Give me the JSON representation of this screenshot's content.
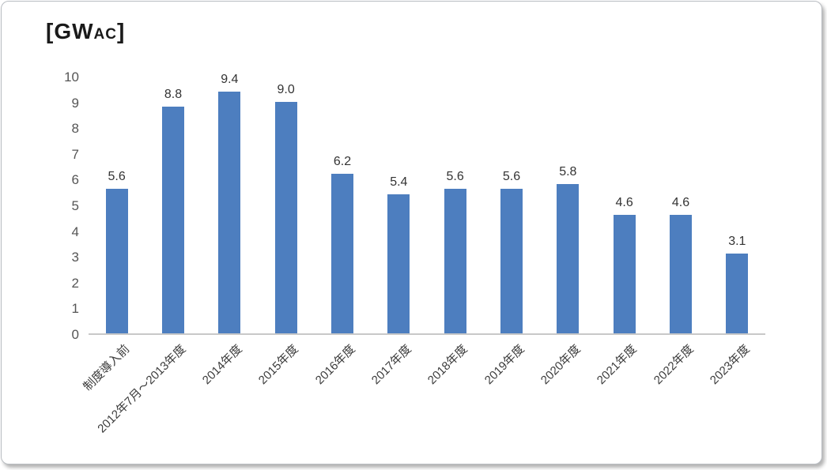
{
  "chart_data": {
    "type": "bar",
    "title": "[GWAC]",
    "unit_label": {
      "prefix": "[GW",
      "subscript": "AC",
      "suffix": "]"
    },
    "categories": [
      "制度導入前",
      "2012年7月～2013年度",
      "2014年度",
      "2015年度",
      "2016年度",
      "2017年度",
      "2018年度",
      "2019年度",
      "2020年度",
      "2021年度",
      "2022年度",
      "2023年度"
    ],
    "values": [
      5.6,
      8.8,
      9.4,
      9.0,
      6.2,
      5.4,
      5.6,
      5.6,
      5.8,
      4.6,
      4.6,
      3.1
    ],
    "value_labels": [
      "5.6",
      "8.8",
      "9.4",
      "9.0",
      "6.2",
      "5.4",
      "5.6",
      "5.6",
      "5.8",
      "4.6",
      "4.6",
      "3.1"
    ],
    "xlabel": "",
    "ylabel": "",
    "ylim": [
      0,
      10
    ],
    "yticks": [
      0,
      1,
      2,
      3,
      4,
      5,
      6,
      7,
      8,
      9,
      10
    ],
    "bar_color": "#4d7ebf",
    "grid": false,
    "legend": false
  }
}
